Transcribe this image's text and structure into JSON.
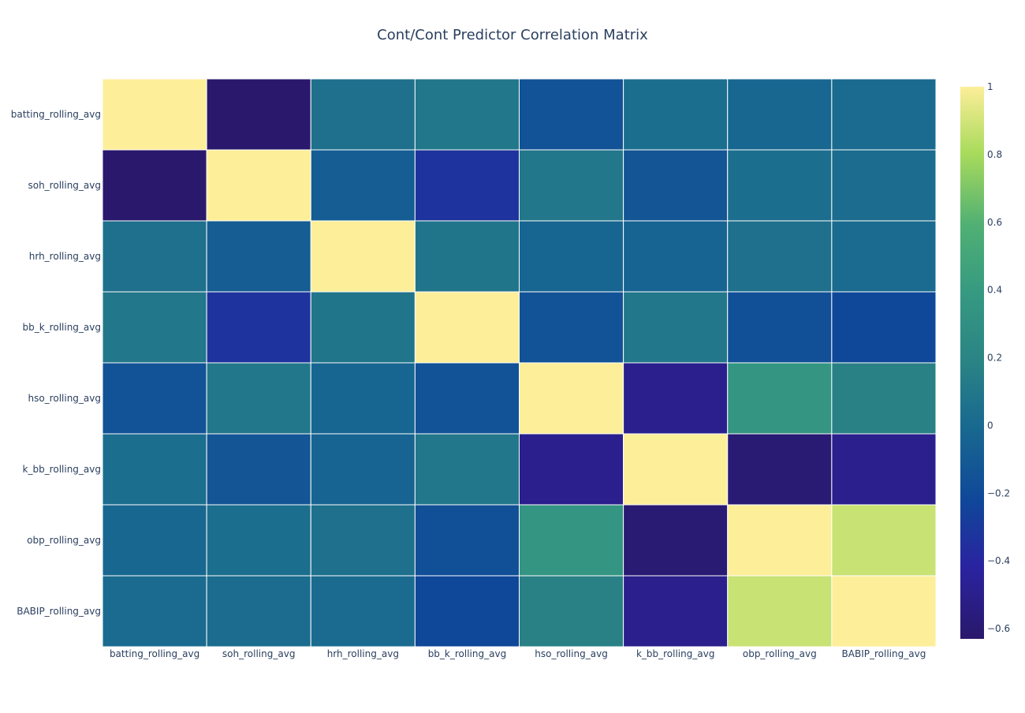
{
  "chart_data": {
    "type": "heatmap",
    "title": "Cont/Cont Predictor Correlation Matrix",
    "x_categories": [
      "batting_rolling_avg",
      "soh_rolling_avg",
      "hrh_rolling_avg",
      "bb_k_rolling_avg",
      "hso_rolling_avg",
      "k_bb_rolling_avg",
      "obp_rolling_avg",
      "BABIP_rolling_avg"
    ],
    "y_categories": [
      "batting_rolling_avg",
      "soh_rolling_avg",
      "hrh_rolling_avg",
      "bb_k_rolling_avg",
      "hso_rolling_avg",
      "k_bb_rolling_avg",
      "obp_rolling_avg",
      "BABIP_rolling_avg"
    ],
    "values": [
      [
        1.0,
        -0.63,
        0.05,
        0.1,
        -0.15,
        0.03,
        -0.02,
        0.01
      ],
      [
        -0.63,
        1.0,
        -0.08,
        -0.33,
        0.1,
        -0.13,
        0.03,
        0.02
      ],
      [
        0.05,
        -0.08,
        1.0,
        0.08,
        -0.03,
        -0.04,
        0.05,
        0.01
      ],
      [
        0.1,
        -0.33,
        0.08,
        1.0,
        -0.15,
        0.1,
        -0.17,
        -0.22
      ],
      [
        -0.15,
        0.1,
        -0.03,
        -0.15,
        1.0,
        -0.5,
        0.35,
        0.17
      ],
      [
        0.03,
        -0.13,
        -0.04,
        0.1,
        -0.5,
        1.0,
        -0.6,
        -0.5
      ],
      [
        -0.02,
        0.03,
        0.05,
        -0.17,
        0.35,
        -0.6,
        1.0,
        0.88
      ],
      [
        0.01,
        0.02,
        0.01,
        -0.22,
        0.17,
        -0.5,
        0.88,
        1.0
      ]
    ],
    "zlim": [
      -0.63,
      1.0
    ],
    "colorscale": "YlGnBu-like (dark navy to yellow)",
    "colorbar": {
      "ticks": [
        1,
        0.8,
        0.6,
        0.4,
        0.2,
        0,
        -0.2,
        -0.4,
        -0.6
      ],
      "tick_labels": [
        "1",
        "0.8",
        "0.6",
        "0.4",
        "0.2",
        "0",
        "−0.2",
        "−0.4",
        "−0.6"
      ]
    },
    "colors": {
      "title": "#2a3f5f",
      "tick_text": "#2a3f5f",
      "cell_gap": "#ffffff"
    }
  }
}
